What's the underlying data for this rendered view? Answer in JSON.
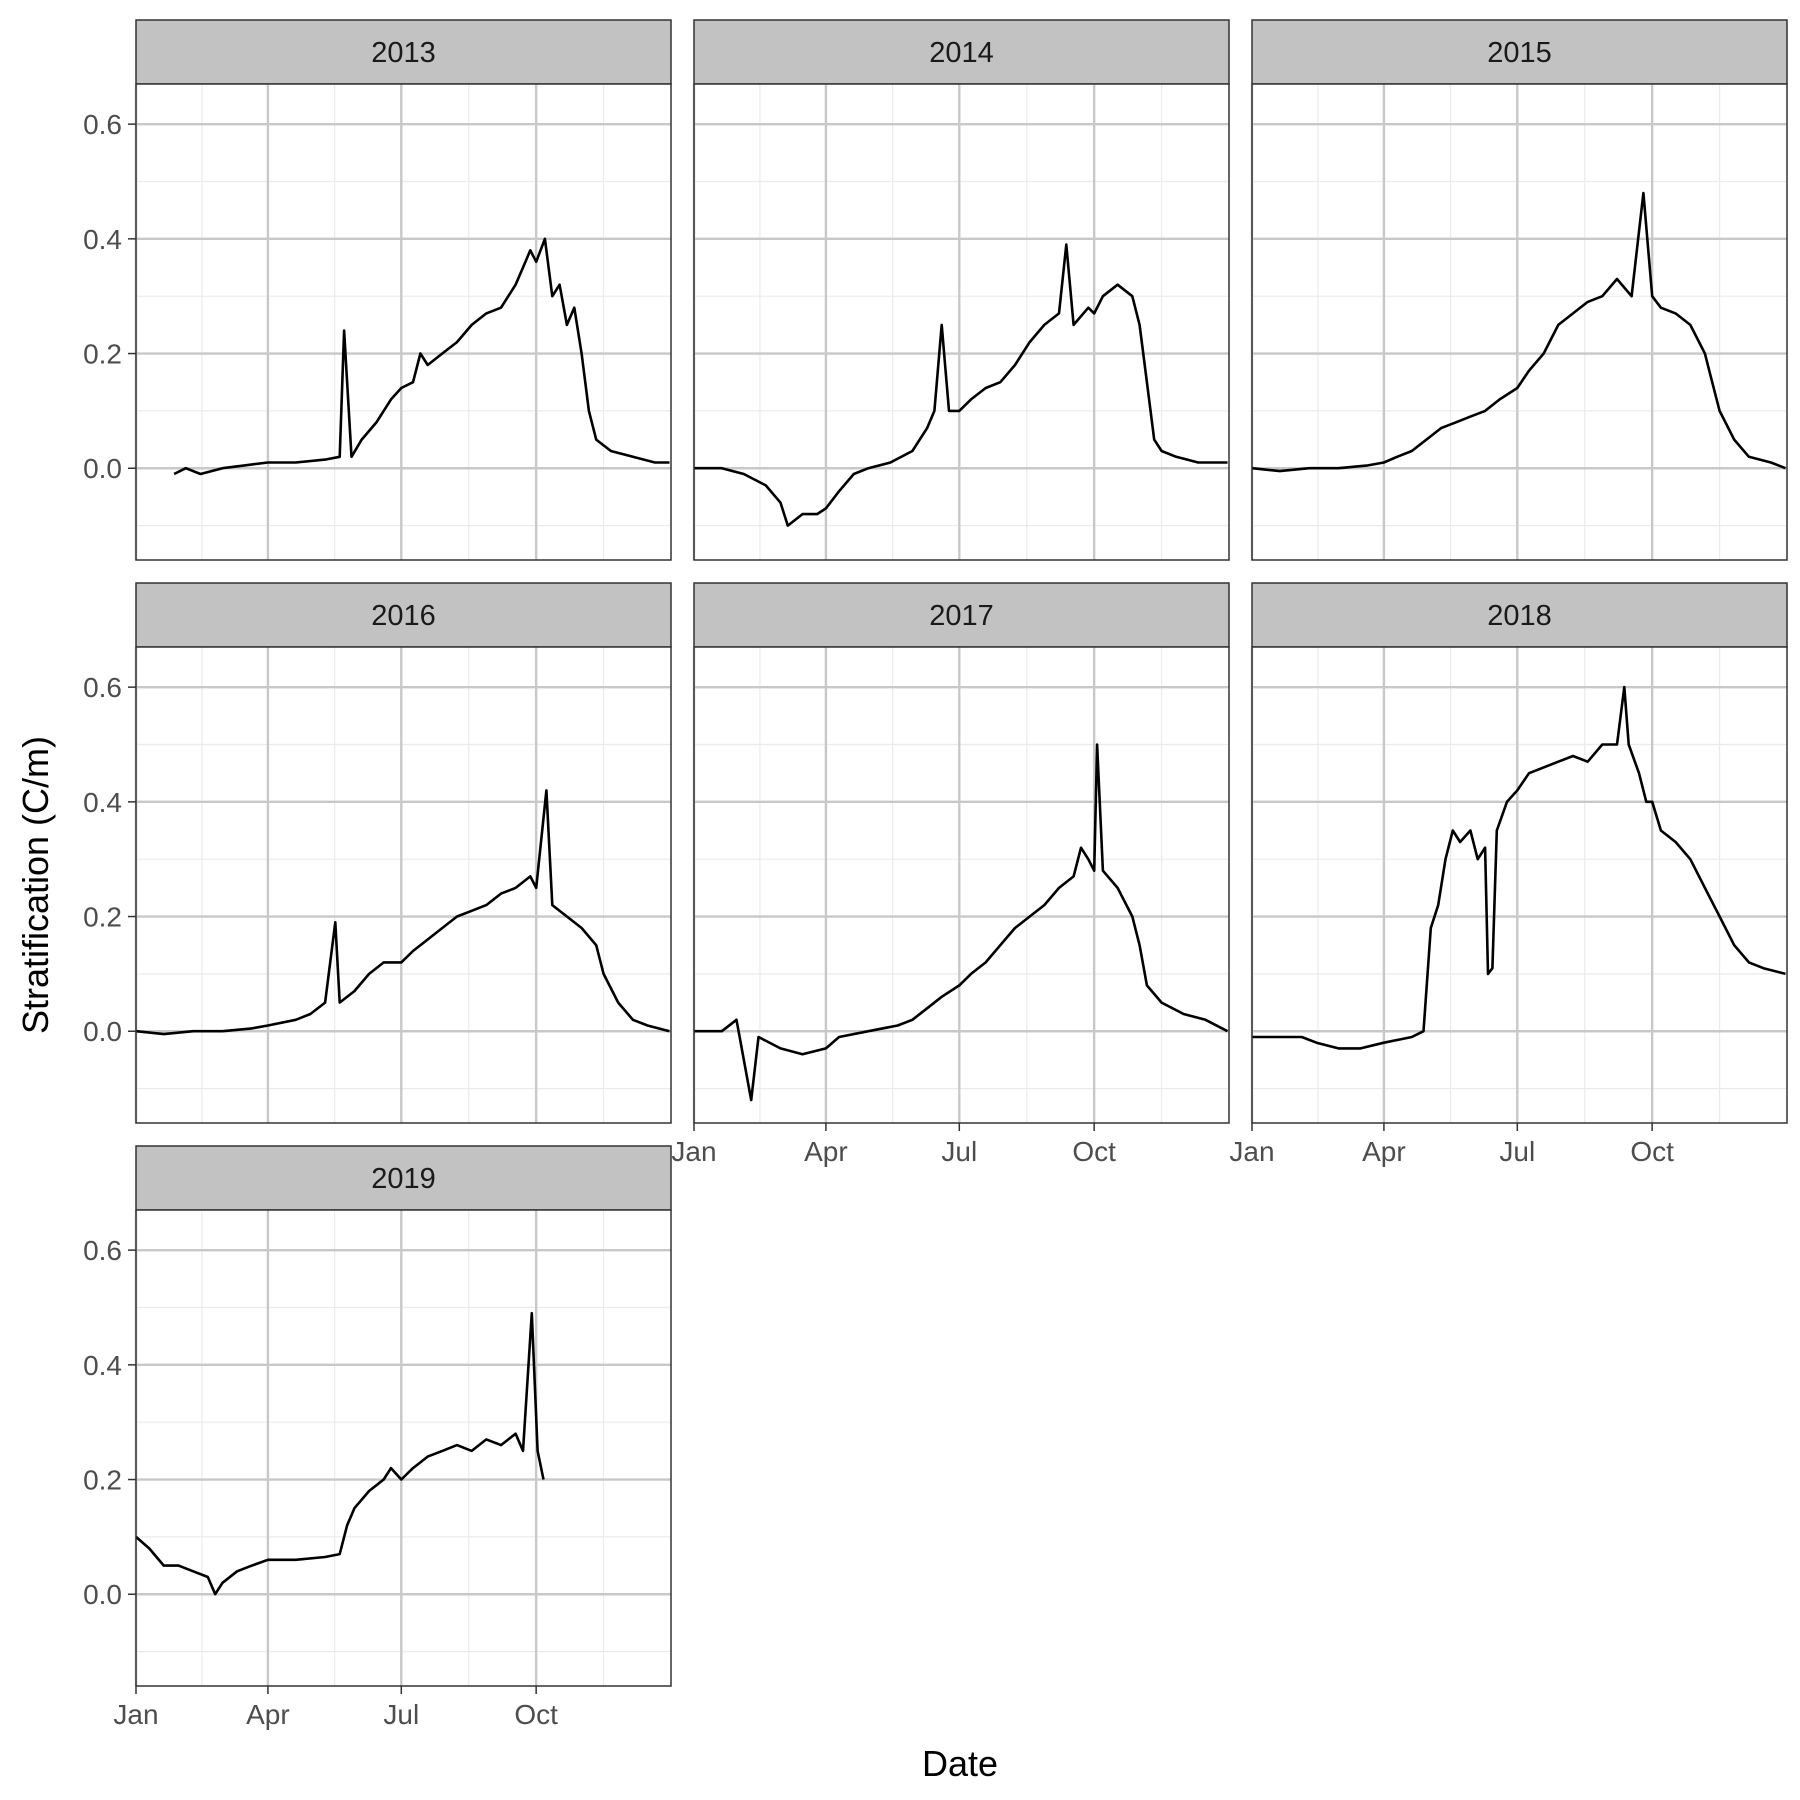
{
  "chart_data": {
    "type": "line",
    "xlabel": "Date",
    "ylabel": "Stratification (C/m)",
    "ylim": [
      -0.16,
      0.67
    ],
    "y_ticks": [
      0.0,
      0.2,
      0.4,
      0.6
    ],
    "y_tick_labels": [
      "0.0",
      "0.2",
      "0.4",
      "0.6"
    ],
    "x_unit": "day of year",
    "xlim": [
      1,
      366
    ],
    "x_ticks": [
      1,
      91,
      182,
      274
    ],
    "x_tick_labels": [
      "Jan",
      "Apr",
      "Jul",
      "Oct"
    ],
    "grid": true,
    "legend": "none",
    "line_color": "#000000",
    "panels": [
      {
        "name": "2013",
        "points": [
          [
            27,
            -0.01
          ],
          [
            35,
            0.0
          ],
          [
            45,
            -0.01
          ],
          [
            60,
            0.0
          ],
          [
            75,
            0.005
          ],
          [
            91,
            0.01
          ],
          [
            110,
            0.01
          ],
          [
            130,
            0.015
          ],
          [
            140,
            0.02
          ],
          [
            143,
            0.24
          ],
          [
            148,
            0.02
          ],
          [
            155,
            0.05
          ],
          [
            165,
            0.08
          ],
          [
            175,
            0.12
          ],
          [
            182,
            0.14
          ],
          [
            190,
            0.15
          ],
          [
            195,
            0.2
          ],
          [
            200,
            0.18
          ],
          [
            210,
            0.2
          ],
          [
            220,
            0.22
          ],
          [
            230,
            0.25
          ],
          [
            240,
            0.27
          ],
          [
            250,
            0.28
          ],
          [
            255,
            0.3
          ],
          [
            260,
            0.32
          ],
          [
            265,
            0.35
          ],
          [
            270,
            0.38
          ],
          [
            274,
            0.36
          ],
          [
            280,
            0.4
          ],
          [
            285,
            0.3
          ],
          [
            290,
            0.32
          ],
          [
            295,
            0.25
          ],
          [
            300,
            0.28
          ],
          [
            305,
            0.2
          ],
          [
            310,
            0.1
          ],
          [
            315,
            0.05
          ],
          [
            325,
            0.03
          ],
          [
            340,
            0.02
          ],
          [
            355,
            0.01
          ],
          [
            365,
            0.01
          ]
        ]
      },
      {
        "name": "2014",
        "points": [
          [
            1,
            0.0
          ],
          [
            20,
            0.0
          ],
          [
            35,
            -0.01
          ],
          [
            50,
            -0.03
          ],
          [
            60,
            -0.06
          ],
          [
            65,
            -0.1
          ],
          [
            75,
            -0.08
          ],
          [
            85,
            -0.08
          ],
          [
            91,
            -0.07
          ],
          [
            100,
            -0.04
          ],
          [
            110,
            -0.01
          ],
          [
            120,
            0.0
          ],
          [
            135,
            0.01
          ],
          [
            150,
            0.03
          ],
          [
            160,
            0.07
          ],
          [
            165,
            0.1
          ],
          [
            170,
            0.25
          ],
          [
            175,
            0.1
          ],
          [
            182,
            0.1
          ],
          [
            190,
            0.12
          ],
          [
            200,
            0.14
          ],
          [
            210,
            0.15
          ],
          [
            220,
            0.18
          ],
          [
            230,
            0.22
          ],
          [
            240,
            0.25
          ],
          [
            250,
            0.27
          ],
          [
            255,
            0.39
          ],
          [
            260,
            0.25
          ],
          [
            270,
            0.28
          ],
          [
            274,
            0.27
          ],
          [
            280,
            0.3
          ],
          [
            290,
            0.32
          ],
          [
            300,
            0.3
          ],
          [
            305,
            0.25
          ],
          [
            310,
            0.15
          ],
          [
            315,
            0.05
          ],
          [
            320,
            0.03
          ],
          [
            330,
            0.02
          ],
          [
            345,
            0.01
          ],
          [
            365,
            0.01
          ]
        ]
      },
      {
        "name": "2015",
        "points": [
          [
            1,
            0.0
          ],
          [
            20,
            -0.005
          ],
          [
            40,
            0.0
          ],
          [
            60,
            0.0
          ],
          [
            80,
            0.005
          ],
          [
            91,
            0.01
          ],
          [
            100,
            0.02
          ],
          [
            110,
            0.03
          ],
          [
            120,
            0.05
          ],
          [
            130,
            0.07
          ],
          [
            140,
            0.08
          ],
          [
            150,
            0.09
          ],
          [
            160,
            0.1
          ],
          [
            170,
            0.12
          ],
          [
            182,
            0.14
          ],
          [
            190,
            0.17
          ],
          [
            200,
            0.2
          ],
          [
            210,
            0.25
          ],
          [
            220,
            0.27
          ],
          [
            230,
            0.29
          ],
          [
            240,
            0.3
          ],
          [
            250,
            0.33
          ],
          [
            260,
            0.3
          ],
          [
            268,
            0.48
          ],
          [
            274,
            0.3
          ],
          [
            280,
            0.28
          ],
          [
            290,
            0.27
          ],
          [
            300,
            0.25
          ],
          [
            310,
            0.2
          ],
          [
            315,
            0.15
          ],
          [
            320,
            0.1
          ],
          [
            330,
            0.05
          ],
          [
            340,
            0.02
          ],
          [
            355,
            0.01
          ],
          [
            365,
            0.0
          ]
        ]
      },
      {
        "name": "2016",
        "points": [
          [
            1,
            0.0
          ],
          [
            20,
            -0.005
          ],
          [
            40,
            0.0
          ],
          [
            60,
            0.0
          ],
          [
            80,
            0.005
          ],
          [
            91,
            0.01
          ],
          [
            110,
            0.02
          ],
          [
            120,
            0.03
          ],
          [
            130,
            0.05
          ],
          [
            137,
            0.19
          ],
          [
            140,
            0.05
          ],
          [
            150,
            0.07
          ],
          [
            160,
            0.1
          ],
          [
            170,
            0.12
          ],
          [
            182,
            0.12
          ],
          [
            190,
            0.14
          ],
          [
            200,
            0.16
          ],
          [
            210,
            0.18
          ],
          [
            220,
            0.2
          ],
          [
            230,
            0.21
          ],
          [
            240,
            0.22
          ],
          [
            250,
            0.24
          ],
          [
            260,
            0.25
          ],
          [
            270,
            0.27
          ],
          [
            274,
            0.25
          ],
          [
            281,
            0.42
          ],
          [
            285,
            0.22
          ],
          [
            295,
            0.2
          ],
          [
            305,
            0.18
          ],
          [
            315,
            0.15
          ],
          [
            320,
            0.1
          ],
          [
            330,
            0.05
          ],
          [
            340,
            0.02
          ],
          [
            350,
            0.01
          ],
          [
            365,
            0.0
          ]
        ]
      },
      {
        "name": "2017",
        "points": [
          [
            1,
            0.0
          ],
          [
            20,
            0.0
          ],
          [
            30,
            0.02
          ],
          [
            40,
            -0.12
          ],
          [
            45,
            -0.01
          ],
          [
            60,
            -0.03
          ],
          [
            75,
            -0.04
          ],
          [
            91,
            -0.03
          ],
          [
            100,
            -0.01
          ],
          [
            120,
            0.0
          ],
          [
            140,
            0.01
          ],
          [
            150,
            0.02
          ],
          [
            160,
            0.04
          ],
          [
            170,
            0.06
          ],
          [
            182,
            0.08
          ],
          [
            190,
            0.1
          ],
          [
            200,
            0.12
          ],
          [
            210,
            0.15
          ],
          [
            220,
            0.18
          ],
          [
            230,
            0.2
          ],
          [
            240,
            0.22
          ],
          [
            250,
            0.25
          ],
          [
            260,
            0.27
          ],
          [
            265,
            0.32
          ],
          [
            270,
            0.3
          ],
          [
            274,
            0.28
          ],
          [
            276,
            0.5
          ],
          [
            280,
            0.28
          ],
          [
            290,
            0.25
          ],
          [
            300,
            0.2
          ],
          [
            305,
            0.15
          ],
          [
            310,
            0.08
          ],
          [
            320,
            0.05
          ],
          [
            335,
            0.03
          ],
          [
            350,
            0.02
          ],
          [
            365,
            0.0
          ]
        ]
      },
      {
        "name": "2018",
        "points": [
          [
            1,
            -0.01
          ],
          [
            20,
            -0.01
          ],
          [
            35,
            -0.01
          ],
          [
            45,
            -0.02
          ],
          [
            60,
            -0.03
          ],
          [
            75,
            -0.03
          ],
          [
            91,
            -0.02
          ],
          [
            110,
            -0.01
          ],
          [
            118,
            0.0
          ],
          [
            123,
            0.18
          ],
          [
            128,
            0.22
          ],
          [
            133,
            0.3
          ],
          [
            138,
            0.35
          ],
          [
            143,
            0.33
          ],
          [
            150,
            0.35
          ],
          [
            155,
            0.3
          ],
          [
            160,
            0.32
          ],
          [
            162,
            0.1
          ],
          [
            165,
            0.11
          ],
          [
            168,
            0.35
          ],
          [
            175,
            0.4
          ],
          [
            182,
            0.42
          ],
          [
            190,
            0.45
          ],
          [
            200,
            0.46
          ],
          [
            210,
            0.47
          ],
          [
            220,
            0.48
          ],
          [
            230,
            0.47
          ],
          [
            240,
            0.5
          ],
          [
            250,
            0.5
          ],
          [
            255,
            0.6
          ],
          [
            258,
            0.5
          ],
          [
            265,
            0.45
          ],
          [
            270,
            0.4
          ],
          [
            274,
            0.4
          ],
          [
            280,
            0.35
          ],
          [
            290,
            0.33
          ],
          [
            300,
            0.3
          ],
          [
            310,
            0.25
          ],
          [
            320,
            0.2
          ],
          [
            330,
            0.15
          ],
          [
            340,
            0.12
          ],
          [
            350,
            0.11
          ],
          [
            365,
            0.1
          ]
        ]
      },
      {
        "name": "2019",
        "points": [
          [
            1,
            0.1
          ],
          [
            10,
            0.08
          ],
          [
            20,
            0.05
          ],
          [
            30,
            0.05
          ],
          [
            40,
            0.04
          ],
          [
            50,
            0.03
          ],
          [
            55,
            0.0
          ],
          [
            60,
            0.02
          ],
          [
            70,
            0.04
          ],
          [
            80,
            0.05
          ],
          [
            91,
            0.06
          ],
          [
            110,
            0.06
          ],
          [
            130,
            0.065
          ],
          [
            140,
            0.07
          ],
          [
            145,
            0.12
          ],
          [
            150,
            0.15
          ],
          [
            160,
            0.18
          ],
          [
            170,
            0.2
          ],
          [
            175,
            0.22
          ],
          [
            182,
            0.2
          ],
          [
            190,
            0.22
          ],
          [
            200,
            0.24
          ],
          [
            210,
            0.25
          ],
          [
            220,
            0.26
          ],
          [
            230,
            0.25
          ],
          [
            240,
            0.27
          ],
          [
            250,
            0.26
          ],
          [
            260,
            0.28
          ],
          [
            265,
            0.25
          ],
          [
            271,
            0.49
          ],
          [
            275,
            0.25
          ],
          [
            279,
            0.2
          ]
        ]
      }
    ]
  }
}
